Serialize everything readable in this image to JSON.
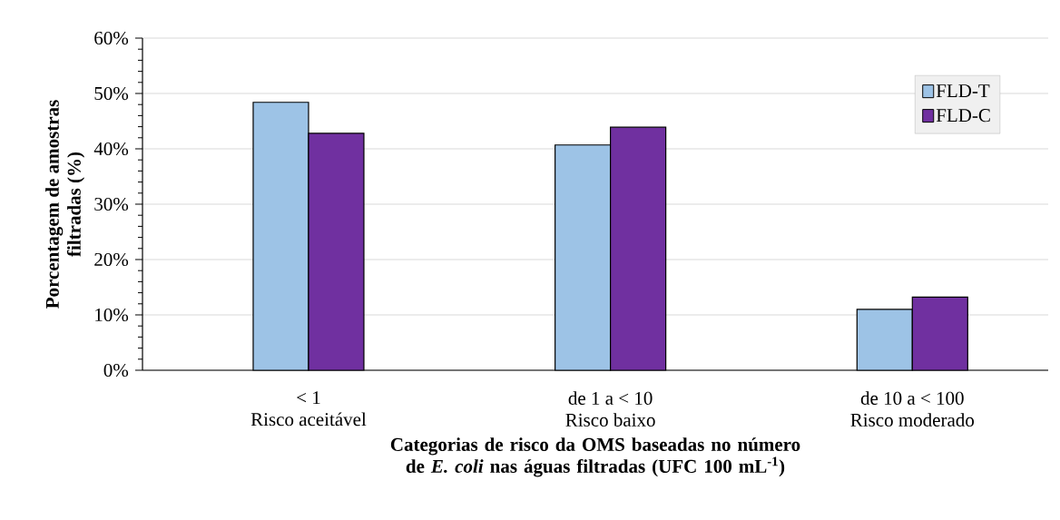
{
  "chart_data": {
    "type": "bar",
    "xlabel": "Categorias de risco da OMS baseadas no número de *E. coli* nas águas filtradas (UFC 100 mL$^{-1}$)",
    "ylabel": "Porcentagem de amostras\nfiltradas (%)",
    "categories": [
      "< 1\nRisco aceitável",
      "de 1 a < 10\nRisco baixo",
      "de 10 a < 100\nRisco moderado"
    ],
    "series": [
      {
        "name": "FLD-T",
        "color": "#9dc3e6",
        "values": [
          48.4,
          40.7,
          11.0
        ]
      },
      {
        "name": "FLD-C",
        "color": "#7030a0",
        "values": [
          42.8,
          43.9,
          13.2
        ]
      }
    ],
    "ylim": [
      0,
      60
    ],
    "yticks": [
      {
        "value": 0,
        "label": "0%"
      },
      {
        "value": 10,
        "label": "10%"
      },
      {
        "value": 20,
        "label": "20%"
      },
      {
        "value": 30,
        "label": "30%"
      },
      {
        "value": 40,
        "label": "40%"
      },
      {
        "value": 50,
        "label": "50%"
      },
      {
        "value": 60,
        "label": "60%"
      }
    ],
    "grid": "y",
    "legend": "top right"
  }
}
